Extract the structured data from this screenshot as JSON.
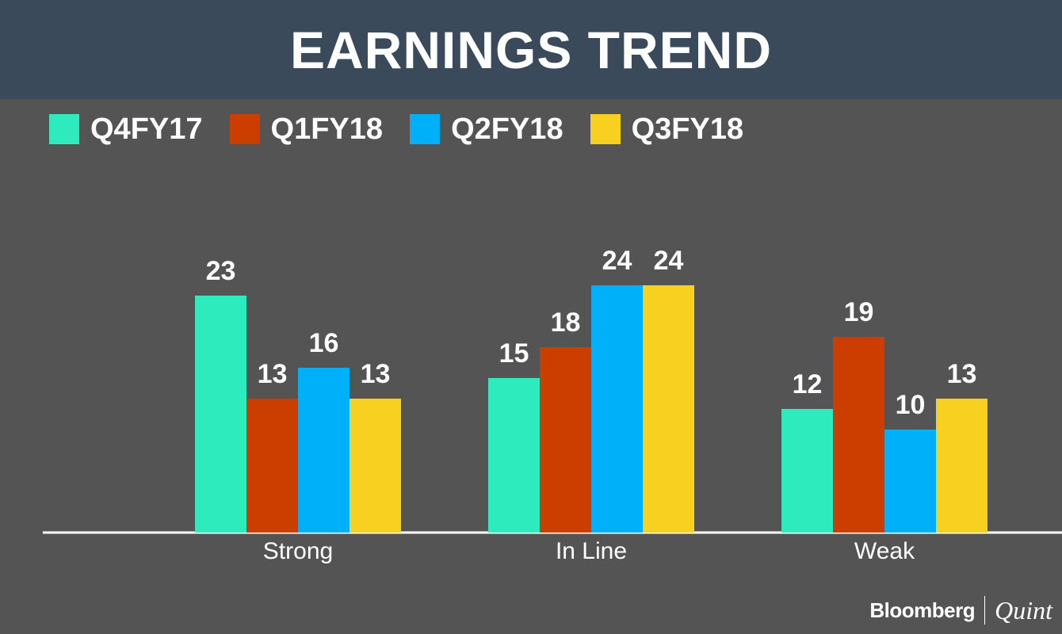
{
  "chart_data": {
    "type": "bar",
    "title": "EARNINGS TREND",
    "categories": [
      "Strong",
      "In Line",
      "Weak"
    ],
    "series": [
      {
        "name": "Q4FY17",
        "color": "#2eebbd",
        "values": [
          23,
          15,
          12
        ]
      },
      {
        "name": "Q1FY18",
        "color": "#cc3d00",
        "values": [
          13,
          18,
          19
        ]
      },
      {
        "name": "Q2FY18",
        "color": "#00b0f8",
        "values": [
          16,
          24,
          10
        ]
      },
      {
        "name": "Q3FY18",
        "color": "#f8d020",
        "values": [
          13,
          24,
          13
        ]
      }
    ],
    "xlabel": "",
    "ylabel": "",
    "ylim": [
      0,
      24
    ],
    "grid": false,
    "legend_position": "top-left",
    "data_labels": true
  },
  "footer": {
    "brand_primary": "Bloomberg",
    "brand_secondary": "Quint"
  },
  "colors": {
    "background": "#545454",
    "header": "#3a4a5b",
    "text": "#ffffff"
  }
}
